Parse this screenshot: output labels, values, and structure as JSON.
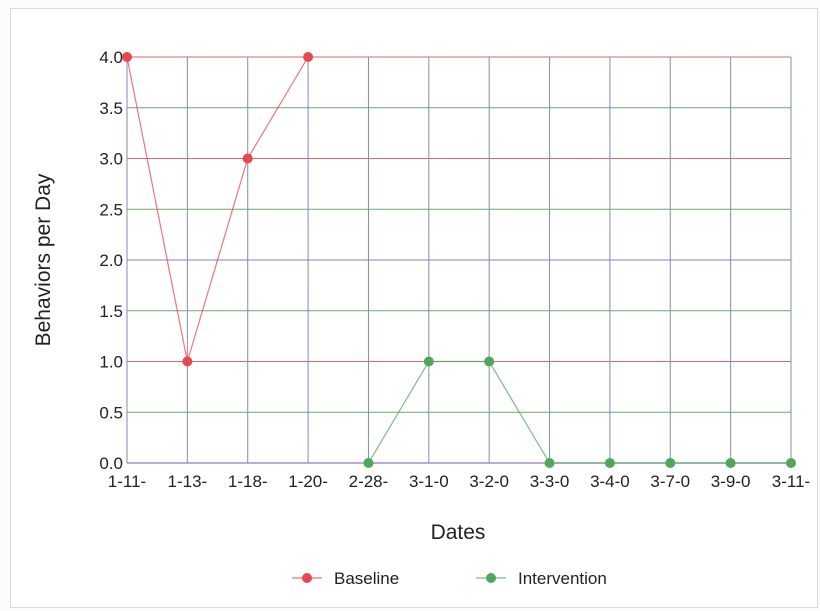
{
  "chart_data": {
    "type": "line",
    "title": "",
    "xlabel": "Dates",
    "ylabel": "Behaviors per Day",
    "categories": [
      "1-11-",
      "1-13-",
      "1-18-",
      "1-20-",
      "2-28-",
      "3-1-0",
      "3-2-0",
      "3-3-0",
      "3-4-0",
      "3-7-0",
      "3-9-0",
      "3-11-"
    ],
    "ylim": [
      0,
      4.0
    ],
    "yticks": [
      "0.0",
      "0.5",
      "1.0",
      "1.5",
      "2.0",
      "2.5",
      "3.0",
      "3.5",
      "4.0"
    ],
    "grid": true,
    "legend_position": "bottom",
    "series": [
      {
        "name": "Baseline",
        "color": "#e8474f",
        "values": [
          4.0,
          1.0,
          3.0,
          4.0,
          null,
          null,
          null,
          null,
          null,
          null,
          null,
          null
        ]
      },
      {
        "name": "Intervention",
        "color": "#4fa85a",
        "values": [
          null,
          null,
          null,
          null,
          0.0,
          1.0,
          1.0,
          0.0,
          0.0,
          0.0,
          0.0,
          0.0
        ]
      }
    ]
  }
}
